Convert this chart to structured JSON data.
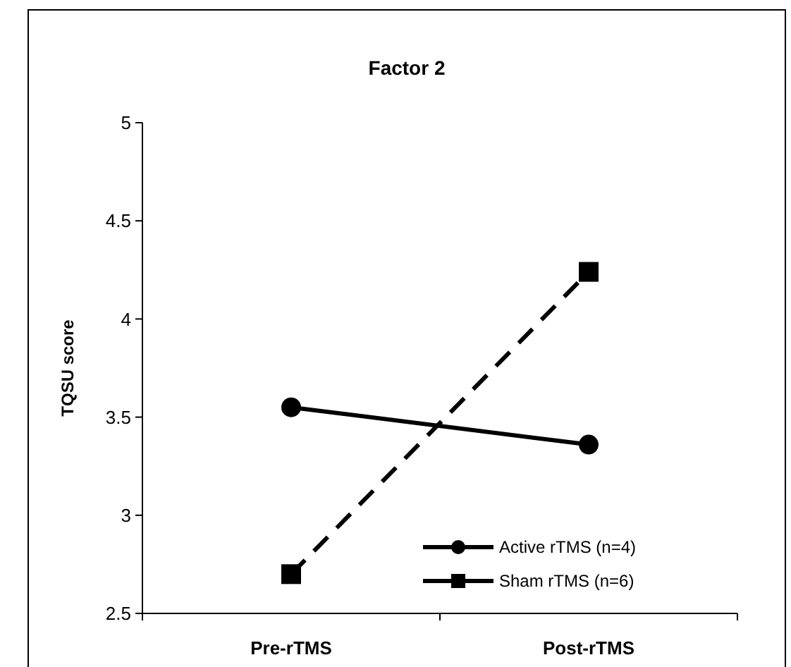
{
  "chart_data": {
    "type": "line",
    "title": "Factor 2",
    "ylabel": "TQSU score",
    "categories": [
      "Pre-rTMS",
      "Post-rTMS"
    ],
    "series": [
      {
        "name": "Active rTMS (n=4)",
        "color": "#000000",
        "values": [
          3.55,
          3.36
        ],
        "marker": "circle",
        "line_style": "solid"
      },
      {
        "name": "Sham rTMS (n=6)",
        "color": "#000000",
        "values": [
          2.7,
          4.24
        ],
        "marker": "square",
        "line_style": "dashed"
      }
    ],
    "ylim": [
      2.5,
      5
    ],
    "yticks": [
      2.5,
      3,
      {
        "value": 3.5,
        "label": "3.5"
      },
      4,
      4.5,
      5
    ],
    "grid": false,
    "legend": "bottom right"
  }
}
